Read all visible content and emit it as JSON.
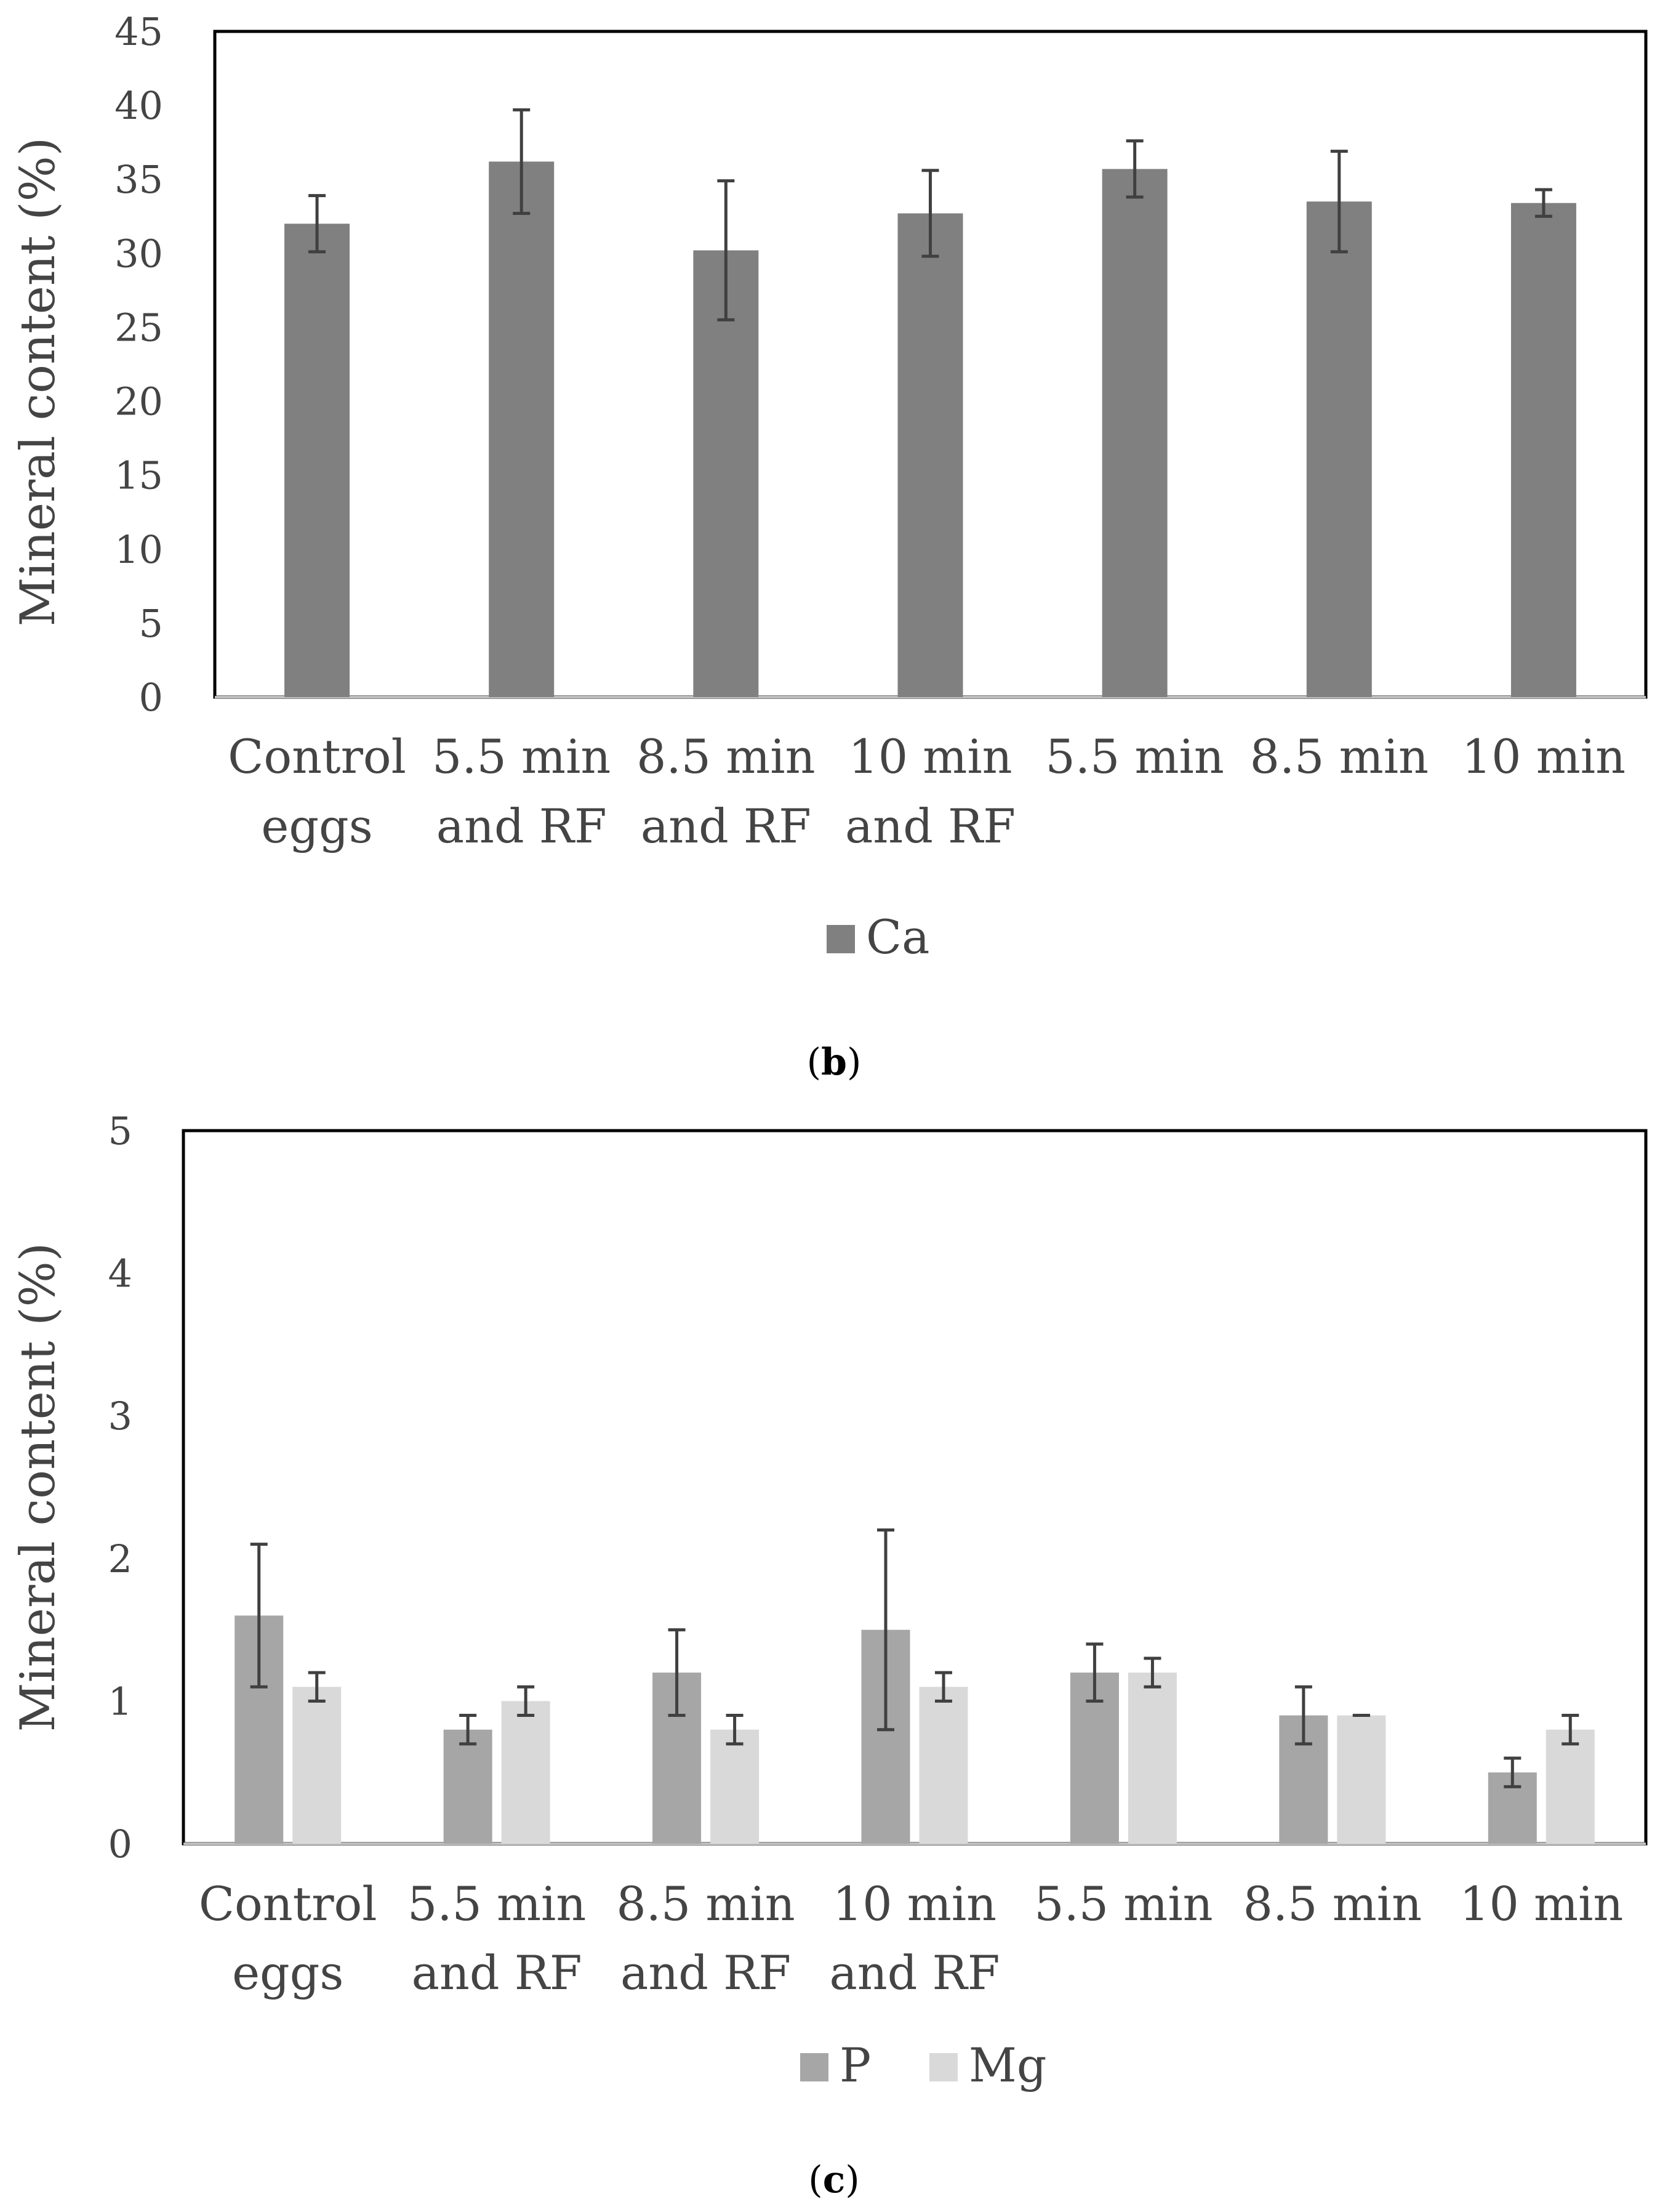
{
  "colors": {
    "ca": "#808080",
    "p": "#a6a6a6",
    "mg": "#d9d9d9",
    "error": "#404040",
    "frame": "#000000",
    "axis": "#bfbfbf"
  },
  "chart_data": [
    {
      "type": "bar",
      "panel_label": "b",
      "ylabel": "Mineral content (%)",
      "xlabel": "",
      "ylim": [
        0,
        45
      ],
      "yticks": [
        "0",
        "5",
        "10",
        "15",
        "20",
        "25",
        "30",
        "35",
        "40",
        "45"
      ],
      "categories": [
        [
          "Control",
          "eggs"
        ],
        [
          "5.5 min",
          "and RF"
        ],
        [
          "8.5 min",
          "and RF"
        ],
        [
          "10 min",
          "and RF"
        ],
        [
          "5.5 min"
        ],
        [
          "8.5 min"
        ],
        [
          "10 min"
        ]
      ],
      "legend_position": "bottom",
      "grid": false,
      "series": [
        {
          "name": "Ca",
          "color": "#808080",
          "values": [
            32.0,
            36.2,
            30.2,
            32.7,
            35.7,
            33.5,
            33.4
          ],
          "errors": [
            1.9,
            3.5,
            4.7,
            2.9,
            1.9,
            3.4,
            0.9
          ]
        }
      ]
    },
    {
      "type": "bar",
      "panel_label": "c",
      "ylabel": "Mineral content (%)",
      "xlabel": "",
      "ylim": [
        0,
        5
      ],
      "yticks": [
        "0",
        "1",
        "2",
        "3",
        "4",
        "5"
      ],
      "categories": [
        [
          "Control",
          "eggs"
        ],
        [
          "5.5 min",
          "and RF"
        ],
        [
          "8.5 min",
          "and RF"
        ],
        [
          "10 min",
          "and RF"
        ],
        [
          "5.5 min"
        ],
        [
          "8.5 min"
        ],
        [
          "10 min"
        ]
      ],
      "legend_position": "bottom",
      "grid": false,
      "series": [
        {
          "name": "P",
          "color": "#a6a6a6",
          "values": [
            1.6,
            0.8,
            1.2,
            1.5,
            1.2,
            0.9,
            0.5
          ],
          "errors": [
            0.5,
            0.1,
            0.3,
            0.7,
            0.2,
            0.2,
            0.1
          ]
        },
        {
          "name": "Mg",
          "color": "#d9d9d9",
          "values": [
            1.1,
            1.0,
            0.8,
            1.1,
            1.2,
            0.9,
            0.8
          ],
          "errors": [
            0.1,
            0.1,
            0.1,
            0.1,
            0.1,
            0.0,
            0.1
          ]
        }
      ]
    }
  ]
}
